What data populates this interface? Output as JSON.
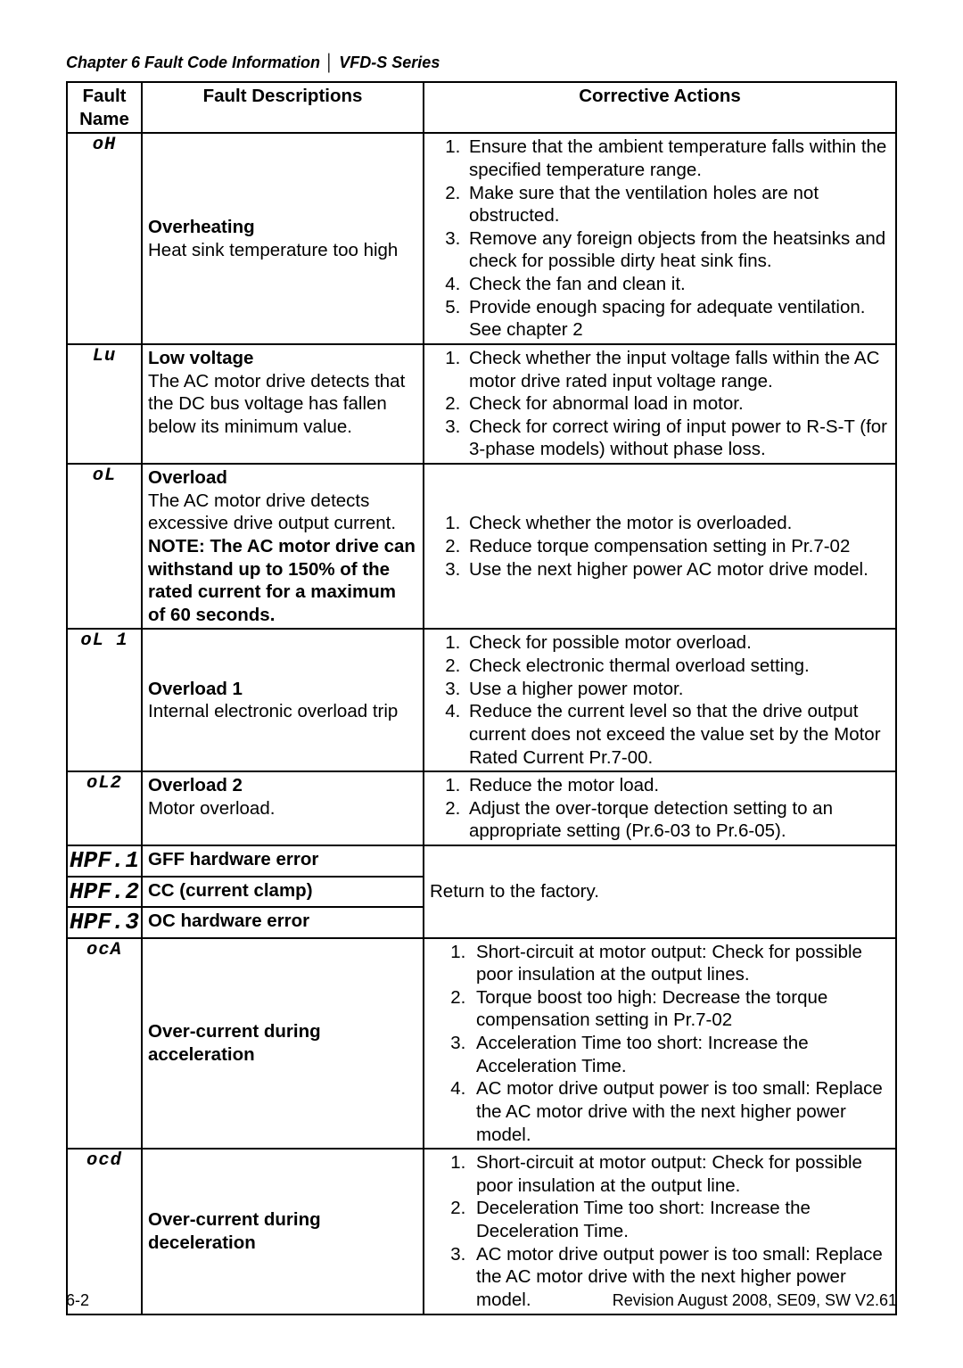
{
  "header": {
    "chapter": "Chapter 6 Fault Code Information",
    "series": "VFD-S Series"
  },
  "table": {
    "headers": {
      "col1_line1": "Fault",
      "col1_line2": "Name",
      "col2": "Fault Descriptions",
      "col3": "Corrective Actions"
    },
    "rows": {
      "oH": {
        "name": "oH",
        "desc_title": "Overheating",
        "desc_body": "Heat sink temperature too high",
        "actions": [
          "Ensure that the ambient temperature falls within the specified temperature range.",
          "Make sure that the ventilation holes are not obstructed.",
          "Remove any foreign objects from the heatsinks and check for possible dirty heat sink fins.",
          "Check the fan and clean it.",
          "Provide enough spacing for adequate ventilation. See chapter 2"
        ]
      },
      "Lu": {
        "name": "Lu",
        "desc_title": "Low voltage",
        "desc_body": "The AC motor drive detects that the DC bus voltage has fallen below its minimum value.",
        "actions": [
          "Check whether the input voltage falls within the AC motor drive rated input voltage range.",
          "Check for abnormal load in motor.",
          "Check for correct wiring of input power to R-S-T (for 3-phase models) without phase loss."
        ]
      },
      "oL": {
        "name": "oL",
        "desc_title": "Overload",
        "desc_body1": "The AC motor drive detects excessive drive output current.",
        "desc_note": "NOTE: The AC motor drive can withstand up to 150% of the rated current for a maximum of 60 seconds.",
        "actions": [
          "Check whether the motor is overloaded.",
          "Reduce torque compensation setting in Pr.7-02",
          "Use the next higher power AC motor drive model."
        ]
      },
      "oL1": {
        "name": "oL 1",
        "desc_title": "Overload 1",
        "desc_body": "Internal electronic overload trip",
        "actions": [
          "Check for possible motor overload.",
          "Check electronic thermal overload setting.",
          "Use a higher power motor.",
          "Reduce the current level so that the drive output current does not exceed the value set by the Motor Rated Current Pr.7-00."
        ]
      },
      "oL2": {
        "name": "oL2",
        "desc_title": "Overload 2",
        "desc_body": "Motor overload.",
        "actions": [
          "Reduce the motor load.",
          "Adjust the over-torque detection setting to an appropriate setting (Pr.6-03 to Pr.6-05)."
        ]
      },
      "HPF1": {
        "name": "HPF.1",
        "desc_title": "GFF hardware error"
      },
      "HPF2": {
        "name": "HPF.2",
        "desc_title": "CC (current clamp)"
      },
      "HPF3": {
        "name": "HPF.3",
        "desc_title": "OC hardware error"
      },
      "HPF_action": "Return to the factory.",
      "ocA": {
        "name": "ocA",
        "desc_title": "Over-current during acceleration",
        "actions": [
          "Short-circuit at motor output: Check for possible poor insulation at the output lines.",
          "Torque boost too high: Decrease the torque compensation setting in Pr.7-02",
          "Acceleration Time too short: Increase the Acceleration Time.",
          "AC motor drive output power is too small: Replace the AC motor drive with the next higher power model."
        ]
      },
      "ocd": {
        "name": "ocd",
        "desc_title": "Over-current during deceleration",
        "actions": [
          "Short-circuit at motor output: Check for possible poor insulation at the output line.",
          "Deceleration Time too short: Increase the Deceleration Time.",
          "AC motor drive output power is too small: Replace the AC motor drive with the next higher power model."
        ]
      }
    }
  },
  "footer": {
    "left": "6-2",
    "right": "Revision August 2008, SE09, SW V2.61"
  }
}
